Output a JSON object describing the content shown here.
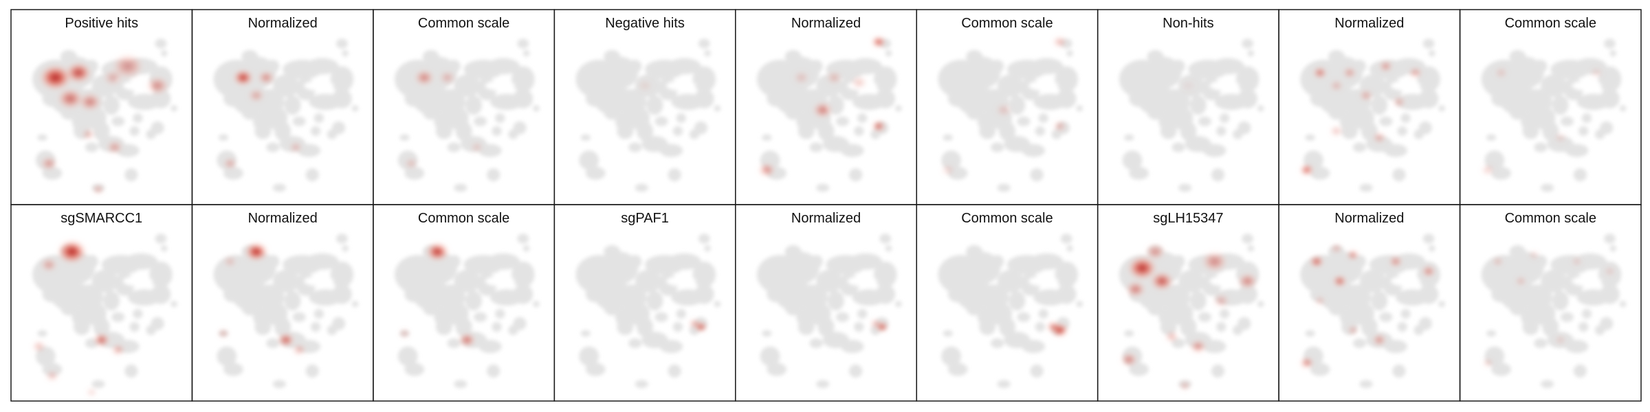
{
  "chart_data": {
    "type": "heatmap",
    "description_rows": 2,
    "description_cols": 9,
    "colors": {
      "background_cells": "#e3e3e3",
      "hotspot_max": "#a50f15",
      "hotspot_mid": "#e3503f",
      "hotspot_low": "#fbd3c4",
      "frame": "#1a1a1a"
    },
    "panels": [
      {
        "title": "Positive hits",
        "hotspots": [
          [
            0.22,
            0.25,
            0.1,
            1.0
          ],
          [
            0.36,
            0.22,
            0.08,
            0.85
          ],
          [
            0.31,
            0.38,
            0.08,
            0.65
          ],
          [
            0.43,
            0.4,
            0.07,
            0.55
          ],
          [
            0.66,
            0.18,
            0.1,
            0.45
          ],
          [
            0.84,
            0.3,
            0.07,
            0.5
          ],
          [
            0.18,
            0.78,
            0.05,
            0.5
          ],
          [
            0.58,
            0.68,
            0.05,
            0.45
          ],
          [
            0.42,
            0.6,
            0.04,
            0.4
          ],
          [
            0.48,
            0.94,
            0.03,
            0.55
          ],
          [
            0.57,
            0.25,
            0.06,
            0.35
          ]
        ]
      },
      {
        "title": "Normalized",
        "hotspots": [
          [
            0.26,
            0.25,
            0.06,
            0.95
          ],
          [
            0.4,
            0.25,
            0.05,
            0.55
          ],
          [
            0.34,
            0.36,
            0.05,
            0.4
          ],
          [
            0.18,
            0.78,
            0.04,
            0.45
          ],
          [
            0.58,
            0.68,
            0.04,
            0.35
          ]
        ]
      },
      {
        "title": "Common scale",
        "hotspots": [
          [
            0.26,
            0.25,
            0.06,
            0.55
          ],
          [
            0.4,
            0.25,
            0.05,
            0.35
          ],
          [
            0.18,
            0.78,
            0.04,
            0.3
          ],
          [
            0.58,
            0.68,
            0.04,
            0.25
          ]
        ]
      },
      {
        "title": "Negative hits",
        "hotspots": [
          [
            0.5,
            0.3,
            0.05,
            0.12
          ]
        ]
      },
      {
        "title": "Normalized",
        "hotspots": [
          [
            0.82,
            0.03,
            0.04,
            0.95
          ],
          [
            0.82,
            0.55,
            0.04,
            0.85
          ],
          [
            0.48,
            0.45,
            0.06,
            0.6
          ],
          [
            0.14,
            0.82,
            0.05,
            0.6
          ],
          [
            0.55,
            0.25,
            0.05,
            0.3
          ],
          [
            0.35,
            0.25,
            0.05,
            0.25
          ],
          [
            0.7,
            0.28,
            0.05,
            0.3
          ]
        ]
      },
      {
        "title": "Common scale",
        "hotspots": [
          [
            0.82,
            0.03,
            0.04,
            0.45
          ],
          [
            0.82,
            0.55,
            0.04,
            0.4
          ],
          [
            0.48,
            0.45,
            0.05,
            0.25
          ],
          [
            0.14,
            0.82,
            0.04,
            0.25
          ]
        ]
      },
      {
        "title": "Non-hits",
        "hotspots": [
          [
            0.5,
            0.3,
            0.05,
            0.08
          ]
        ]
      },
      {
        "title": "Normalized",
        "hotspots": [
          [
            0.2,
            0.22,
            0.04,
            0.75
          ],
          [
            0.38,
            0.22,
            0.04,
            0.5
          ],
          [
            0.6,
            0.18,
            0.04,
            0.55
          ],
          [
            0.78,
            0.22,
            0.04,
            0.5
          ],
          [
            0.48,
            0.36,
            0.04,
            0.45
          ],
          [
            0.68,
            0.4,
            0.04,
            0.4
          ],
          [
            0.56,
            0.62,
            0.04,
            0.45
          ],
          [
            0.12,
            0.82,
            0.04,
            0.9
          ],
          [
            0.3,
            0.58,
            0.04,
            0.35
          ],
          [
            0.3,
            0.3,
            0.04,
            0.35
          ]
        ]
      },
      {
        "title": "Common scale",
        "hotspots": [
          [
            0.2,
            0.22,
            0.04,
            0.25
          ],
          [
            0.56,
            0.62,
            0.04,
            0.2
          ],
          [
            0.12,
            0.82,
            0.04,
            0.3
          ],
          [
            0.78,
            0.22,
            0.04,
            0.2
          ]
        ]
      },
      {
        "title": "sgSMARCC1",
        "hotspots": [
          [
            0.32,
            0.12,
            0.09,
            1.0
          ],
          [
            0.18,
            0.2,
            0.05,
            0.45
          ],
          [
            0.12,
            0.7,
            0.04,
            0.4
          ],
          [
            0.5,
            0.66,
            0.05,
            0.75
          ],
          [
            0.6,
            0.72,
            0.04,
            0.5
          ],
          [
            0.2,
            0.88,
            0.04,
            0.35
          ],
          [
            0.44,
            0.98,
            0.03,
            0.3
          ]
        ]
      },
      {
        "title": "Normalized",
        "hotspots": [
          [
            0.34,
            0.12,
            0.07,
            1.0
          ],
          [
            0.52,
            0.66,
            0.05,
            0.8
          ],
          [
            0.6,
            0.72,
            0.04,
            0.45
          ],
          [
            0.14,
            0.62,
            0.03,
            0.45
          ],
          [
            0.18,
            0.18,
            0.04,
            0.3
          ]
        ]
      },
      {
        "title": "Common scale",
        "hotspots": [
          [
            0.34,
            0.12,
            0.07,
            0.95
          ],
          [
            0.52,
            0.66,
            0.05,
            0.7
          ],
          [
            0.14,
            0.62,
            0.03,
            0.4
          ]
        ]
      },
      {
        "title": "sgPAF1",
        "hotspots": [
          [
            0.84,
            0.58,
            0.035,
            1.0
          ],
          [
            0.8,
            0.56,
            0.03,
            0.6
          ]
        ]
      },
      {
        "title": "Normalized",
        "hotspots": [
          [
            0.84,
            0.58,
            0.035,
            1.0
          ],
          [
            0.8,
            0.56,
            0.03,
            0.5
          ]
        ]
      },
      {
        "title": "Common scale",
        "hotspots": [
          [
            0.82,
            0.6,
            0.05,
            1.0
          ],
          [
            0.78,
            0.58,
            0.04,
            0.7
          ]
        ]
      },
      {
        "title": "sgLH15347",
        "hotspots": [
          [
            0.22,
            0.22,
            0.09,
            0.95
          ],
          [
            0.34,
            0.3,
            0.07,
            0.8
          ],
          [
            0.18,
            0.35,
            0.06,
            0.6
          ],
          [
            0.3,
            0.12,
            0.06,
            0.5
          ],
          [
            0.66,
            0.18,
            0.08,
            0.5
          ],
          [
            0.86,
            0.3,
            0.06,
            0.55
          ],
          [
            0.14,
            0.78,
            0.05,
            0.6
          ],
          [
            0.56,
            0.7,
            0.05,
            0.55
          ],
          [
            0.4,
            0.64,
            0.04,
            0.45
          ],
          [
            0.48,
            0.94,
            0.03,
            0.45
          ],
          [
            0.7,
            0.42,
            0.05,
            0.35
          ]
        ]
      },
      {
        "title": "Normalized",
        "hotspots": [
          [
            0.18,
            0.18,
            0.04,
            0.9
          ],
          [
            0.32,
            0.3,
            0.04,
            0.85
          ],
          [
            0.4,
            0.14,
            0.035,
            0.7
          ],
          [
            0.66,
            0.18,
            0.04,
            0.6
          ],
          [
            0.86,
            0.24,
            0.04,
            0.65
          ],
          [
            0.12,
            0.8,
            0.04,
            0.7
          ],
          [
            0.56,
            0.66,
            0.04,
            0.6
          ],
          [
            0.4,
            0.6,
            0.03,
            0.5
          ],
          [
            0.3,
            0.1,
            0.03,
            0.5
          ],
          [
            0.2,
            0.42,
            0.03,
            0.4
          ]
        ]
      },
      {
        "title": "Common scale",
        "hotspots": [
          [
            0.18,
            0.18,
            0.03,
            0.4
          ],
          [
            0.32,
            0.3,
            0.03,
            0.4
          ],
          [
            0.4,
            0.14,
            0.03,
            0.3
          ],
          [
            0.66,
            0.18,
            0.03,
            0.3
          ],
          [
            0.86,
            0.24,
            0.03,
            0.3
          ],
          [
            0.12,
            0.8,
            0.03,
            0.35
          ],
          [
            0.56,
            0.66,
            0.03,
            0.3
          ]
        ]
      }
    ]
  }
}
